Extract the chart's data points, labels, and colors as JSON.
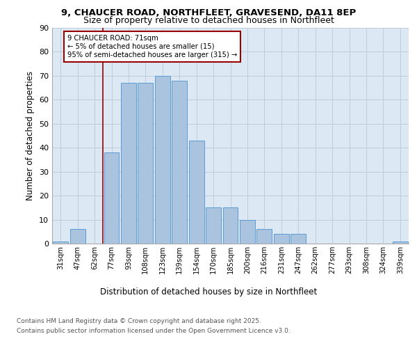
{
  "title_line1": "9, CHAUCER ROAD, NORTHFLEET, GRAVESEND, DA11 8EP",
  "title_line2": "Size of property relative to detached houses in Northfleet",
  "xlabel": "Distribution of detached houses by size in Northfleet",
  "ylabel": "Number of detached properties",
  "categories": [
    "31sqm",
    "47sqm",
    "62sqm",
    "77sqm",
    "93sqm",
    "108sqm",
    "123sqm",
    "139sqm",
    "154sqm",
    "170sqm",
    "185sqm",
    "200sqm",
    "216sqm",
    "231sqm",
    "247sqm",
    "262sqm",
    "277sqm",
    "293sqm",
    "308sqm",
    "324sqm",
    "339sqm"
  ],
  "values": [
    1,
    6,
    0,
    38,
    67,
    67,
    70,
    68,
    43,
    15,
    15,
    10,
    6,
    4,
    4,
    0,
    0,
    0,
    0,
    0,
    1
  ],
  "bar_color": "#aac4e0",
  "bar_edge_color": "#5b9bd5",
  "background_color": "#dde8f5",
  "grid_color": "#c0ccd8",
  "vline_x_index": 3,
  "vline_color": "#990000",
  "annotation_text": "9 CHAUCER ROAD: 71sqm\n← 5% of detached houses are smaller (15)\n95% of semi-detached houses are larger (315) →",
  "annotation_box_edgecolor": "#990000",
  "footer_line1": "Contains HM Land Registry data © Crown copyright and database right 2025.",
  "footer_line2": "Contains public sector information licensed under the Open Government Licence v3.0.",
  "ylim": [
    0,
    90
  ],
  "yticks": [
    0,
    10,
    20,
    30,
    40,
    50,
    60,
    70,
    80,
    90
  ]
}
